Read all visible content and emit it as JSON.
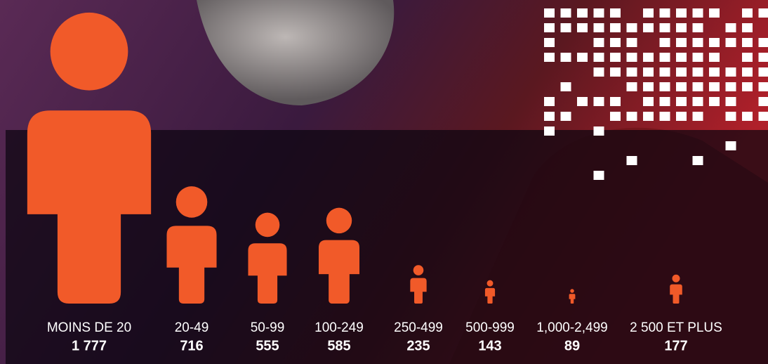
{
  "chart_data": {
    "type": "pictogram",
    "categories": [
      "MOINS DE 20",
      "20-49",
      "50-99",
      "100-249",
      "250-499",
      "500-999",
      "1,000-2,499",
      "2 500 ET PLUS"
    ],
    "values": [
      1777,
      716,
      555,
      585,
      235,
      143,
      89,
      177
    ],
    "value_labels": [
      "1 777",
      "716",
      "555",
      "585",
      "235",
      "143",
      "89",
      "177"
    ],
    "color": "#f15a29"
  }
}
